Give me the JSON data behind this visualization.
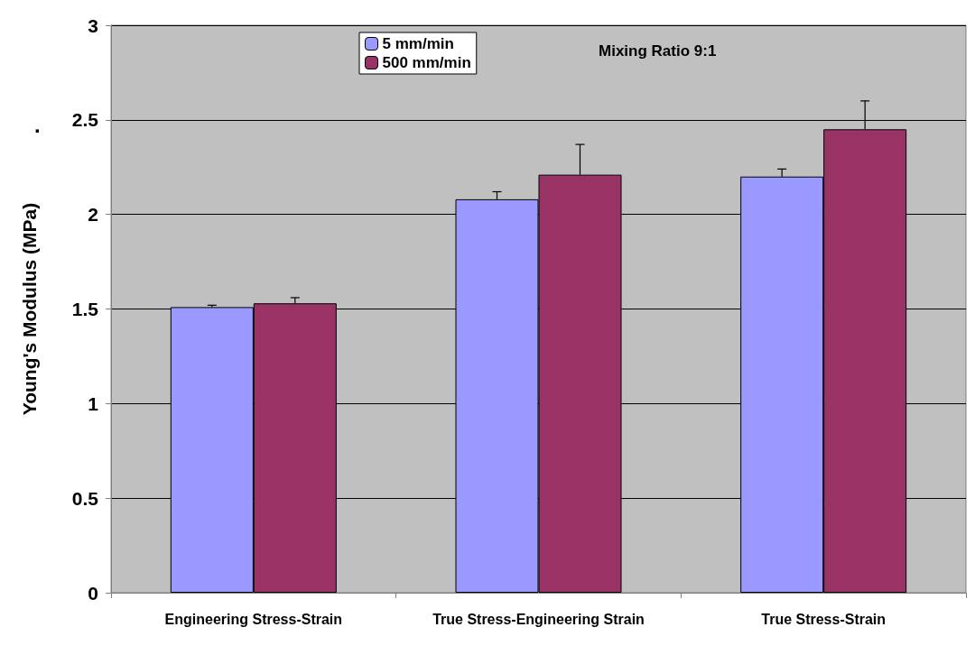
{
  "chart_data": {
    "type": "bar",
    "ylabel": "Young's Modulus (MPa)",
    "categories": [
      "Engineering Stress-Strain",
      "True Stress-Engineering Strain",
      "True Stress-Strain"
    ],
    "series": [
      {
        "name": "5 mm/min",
        "color": "#9999ff",
        "values": [
          1.51,
          2.08,
          2.2
        ],
        "errors": [
          [
            1.51,
            1.52
          ],
          [
            2.08,
            2.12
          ],
          [
            2.2,
            2.24
          ]
        ]
      },
      {
        "name": "500 mm/min",
        "color": "#993366",
        "values": [
          1.53,
          2.21,
          2.45
        ],
        "errors": [
          [
            1.53,
            1.56
          ],
          [
            2.21,
            2.37
          ],
          [
            2.45,
            2.6
          ]
        ]
      }
    ],
    "ylim": [
      0,
      3
    ],
    "yticks": [
      0,
      0.5,
      1,
      1.5,
      2,
      2.5,
      3
    ],
    "grid": "y",
    "legend": "top",
    "annotations": [
      {
        "text": "Mixing Ratio 9:1"
      },
      {
        "text": "."
      }
    ]
  }
}
